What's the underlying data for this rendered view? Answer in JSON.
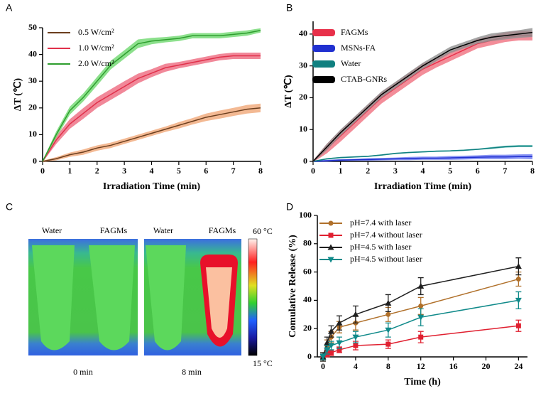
{
  "chart_data": [
    {
      "type": "line",
      "panel": "A",
      "xlabel": "Irradiation Time (min)",
      "ylabel": "ΔT (℃)",
      "x": [
        0,
        0.5,
        1,
        1.5,
        2,
        2.5,
        3,
        3.5,
        4,
        4.5,
        5,
        5.5,
        6,
        6.5,
        7,
        7.5,
        8
      ],
      "xlim": [
        0,
        8
      ],
      "xticks": [
        0,
        1,
        2,
        3,
        4,
        5,
        6,
        7,
        8
      ],
      "ylim": [
        0,
        50
      ],
      "yticks": [
        0,
        10,
        20,
        30,
        40,
        50
      ],
      "legend": "upper left",
      "legend_style": "line",
      "band": true,
      "series": [
        {
          "name": "0.5 W/cm²",
          "color": "#6b3e1e",
          "band_color": "#f0a878",
          "values": [
            0,
            1,
            2.5,
            3.5,
            5,
            6,
            7.5,
            9,
            10.5,
            12,
            13.5,
            15,
            16.5,
            17.5,
            18.5,
            19.5,
            20
          ],
          "error": [
            0.3,
            0.6,
            0.8,
            1,
            1,
            1,
            1,
            1,
            1,
            1,
            1.2,
            1.2,
            1.4,
            1.5,
            1.5,
            1.6,
            1.6
          ]
        },
        {
          "name": "1.0 W/cm²",
          "color": "#e0304a",
          "band_color": "#ee6a80",
          "values": [
            0,
            8,
            14,
            18,
            22,
            25,
            28,
            31,
            33,
            35,
            36,
            37,
            38,
            39,
            39.5,
            39.5,
            39.5
          ],
          "error": [
            0.3,
            1.5,
            1.8,
            2,
            2,
            2,
            2,
            1.8,
            1.5,
            1.5,
            1.2,
            1.2,
            1.2,
            1.2,
            1.2,
            1.2,
            1.2
          ]
        },
        {
          "name": "2.0 W/cm²",
          "color": "#2e9e2e",
          "band_color": "#6fd86f",
          "values": [
            0,
            10,
            19,
            24,
            30,
            36,
            40,
            44,
            45,
            45.5,
            46,
            47,
            47,
            47,
            47.5,
            48,
            49
          ],
          "error": [
            0.3,
            1.2,
            1.5,
            1.5,
            1.6,
            1.6,
            1.6,
            1.6,
            1.2,
            1,
            1,
            1,
            1,
            1,
            1,
            1,
            0.8
          ]
        }
      ]
    },
    {
      "type": "line",
      "panel": "B",
      "xlabel": "Irradiation Time (min)",
      "ylabel": "ΔT (℃)",
      "x": [
        0,
        0.5,
        1,
        1.5,
        2,
        2.5,
        3,
        3.5,
        4,
        4.5,
        5,
        5.5,
        6,
        6.5,
        7,
        7.5,
        8
      ],
      "xlim": [
        0,
        8
      ],
      "xticks": [
        0,
        1,
        2,
        3,
        4,
        5,
        6,
        7,
        8
      ],
      "ylim": [
        0,
        44
      ],
      "yticks": [
        0,
        10,
        20,
        30,
        40
      ],
      "legend": "upper left",
      "legend_style": "bar",
      "band": true,
      "series": [
        {
          "name": "FAGMs",
          "color": "#e8304a",
          "band_color": "#f07080",
          "values": [
            0,
            4,
            8,
            12,
            16,
            20,
            23,
            26,
            29,
            31,
            33,
            35,
            37,
            38,
            39,
            39.5,
            39.5
          ],
          "error": [
            0.3,
            1.5,
            1.8,
            1.8,
            1.8,
            1.8,
            1.8,
            1.8,
            1.8,
            1.5,
            1.5,
            1.5,
            1.5,
            1.5,
            1.5,
            1.5,
            1.5
          ]
        },
        {
          "name": "MSNs-FA",
          "color": "#2030d0",
          "band_color": "#6a78f0",
          "values": [
            0,
            0.2,
            0.4,
            0.5,
            0.6,
            0.7,
            0.8,
            0.9,
            1,
            1,
            1.1,
            1.2,
            1.3,
            1.4,
            1.4,
            1.5,
            1.5
          ],
          "error": [
            0.2,
            0.3,
            0.3,
            0.3,
            0.4,
            0.4,
            0.4,
            0.5,
            0.5,
            0.5,
            0.6,
            0.6,
            0.6,
            0.7,
            0.7,
            0.7,
            0.8
          ]
        },
        {
          "name": "Water",
          "color": "#108080",
          "band_color": "#50b8b0",
          "values": [
            0,
            0.8,
            1.2,
            1.4,
            1.6,
            2,
            2.5,
            2.8,
            3,
            3.2,
            3.3,
            3.5,
            3.8,
            4.2,
            4.6,
            4.8,
            4.8
          ],
          "error": [
            0.1,
            0.2,
            0.2,
            0.2,
            0.2,
            0.2,
            0.2,
            0.2,
            0.2,
            0.2,
            0.2,
            0.2,
            0.2,
            0.3,
            0.3,
            0.3,
            0.3
          ]
        },
        {
          "name": "CTAB-GNRs",
          "color": "#000000",
          "band_color": "#909090",
          "values": [
            0,
            4.5,
            9,
            13,
            17,
            21,
            24,
            27,
            30,
            32.5,
            35,
            36.5,
            38,
            39,
            39.5,
            40,
            40.5
          ],
          "error": [
            0.3,
            1,
            1,
            1,
            1,
            1,
            1,
            1,
            1,
            1,
            1,
            1,
            1,
            1.2,
            1.2,
            1.2,
            1.4
          ]
        }
      ]
    },
    {
      "type": "line",
      "panel": "D",
      "xlabel": "Time (h)",
      "ylabel": "Comulative Release (%)",
      "x": [
        0,
        0.5,
        1,
        2,
        4,
        8,
        12,
        24
      ],
      "xlim": [
        -0.7,
        25.1
      ],
      "xticks": [
        0,
        4,
        8,
        12,
        16,
        20,
        24
      ],
      "ylim": [
        0,
        100
      ],
      "yticks": [
        0,
        20,
        40,
        60,
        80,
        100
      ],
      "legend": "upper left",
      "legend_style": "marker",
      "band": false,
      "series": [
        {
          "name": "pH=7.4 with laser",
          "color": "#b0702a",
          "marker": "circle",
          "values": [
            0,
            8,
            14,
            21,
            24,
            30,
            36,
            55
          ],
          "error": [
            3,
            4,
            4,
            4,
            5,
            5,
            6,
            5
          ]
        },
        {
          "name": "pH=7.4 without laser",
          "color": "#e02030",
          "marker": "square",
          "values": [
            0,
            2,
            3,
            5,
            8,
            9,
            14,
            22
          ],
          "error": [
            2,
            2,
            2,
            2,
            3,
            3,
            4,
            4
          ]
        },
        {
          "name": "pH=4.5 with laser",
          "color": "#202020",
          "marker": "triangle-up",
          "values": [
            0,
            10,
            18,
            24,
            30,
            38,
            50,
            64
          ],
          "error": [
            3,
            4,
            4,
            5,
            6,
            6,
            6,
            6
          ]
        },
        {
          "name": "pH=4.5 without laser",
          "color": "#108a8a",
          "marker": "triangle-down",
          "values": [
            0,
            5,
            8,
            10,
            14,
            19,
            28,
            40
          ],
          "error": [
            2,
            3,
            3,
            4,
            4,
            5,
            6,
            6
          ]
        }
      ]
    }
  ],
  "thermal_panel": {
    "panel": "C",
    "images": [
      {
        "labels": [
          "Water",
          "FAGMs"
        ],
        "caption": "0 min"
      },
      {
        "labels": [
          "Water",
          "FAGMs"
        ],
        "caption": "8 min"
      }
    ],
    "scale_max": "60 °C",
    "scale_min": "15 °C"
  }
}
